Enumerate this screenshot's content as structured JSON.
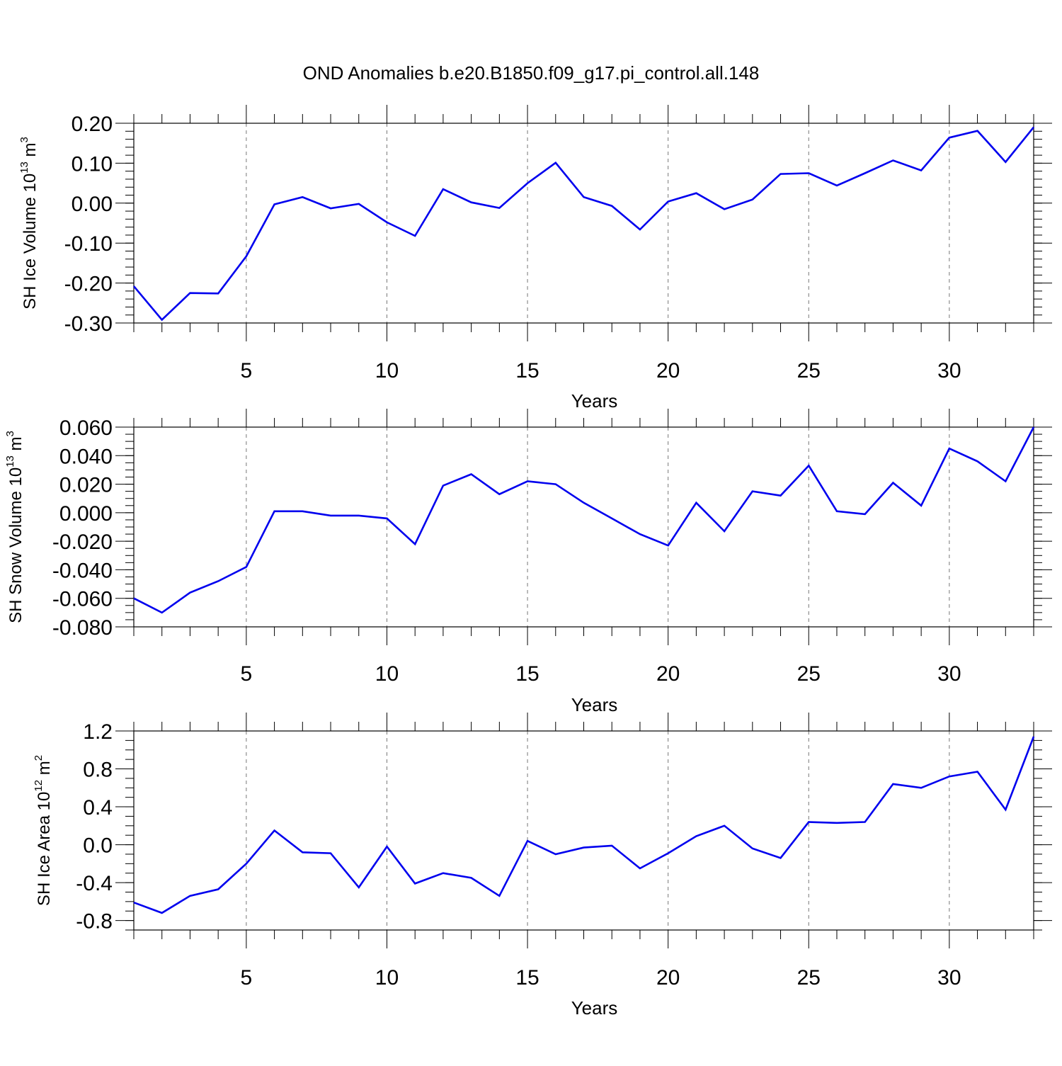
{
  "figure": {
    "title": "OND Anomalies b.e20.B1850.f09_g17.pi_control.all.148",
    "line_color": "#0000ee"
  },
  "chart_data": [
    {
      "type": "line",
      "ylabel_main": "SH Ice Volume 10",
      "ylabel_exp": "13",
      "ylabel_unit": " m",
      "ylabel_unit_exp": "3",
      "xlabel": "Years",
      "xlim": [
        1,
        33
      ],
      "ylim": [
        -0.3,
        0.2
      ],
      "xticks": [
        5,
        10,
        15,
        20,
        25,
        30
      ],
      "xtick_labels": [
        "5",
        "10",
        "15",
        "20",
        "25",
        "30"
      ],
      "yticks": [
        -0.3,
        -0.2,
        -0.1,
        0.0,
        0.1,
        0.2
      ],
      "ytick_labels": [
        "-0.30",
        "-0.20",
        "-0.10",
        "0.00",
        "0.10",
        "0.20"
      ],
      "ytick_minor_step": 0.02,
      "x": [
        1,
        2,
        3,
        4,
        5,
        6,
        7,
        8,
        9,
        10,
        11,
        12,
        13,
        14,
        15,
        16,
        17,
        18,
        19,
        20,
        21,
        22,
        23,
        24,
        25,
        26,
        27,
        28,
        29,
        30,
        31,
        32,
        33
      ],
      "values": [
        -0.208,
        -0.292,
        -0.225,
        -0.226,
        -0.133,
        -0.003,
        0.015,
        -0.013,
        -0.002,
        -0.048,
        -0.082,
        0.035,
        0.002,
        -0.012,
        0.05,
        0.101,
        0.015,
        -0.007,
        -0.066,
        0.004,
        0.025,
        -0.015,
        0.009,
        0.073,
        0.075,
        0.044,
        0.075,
        0.107,
        0.082,
        0.164,
        0.181,
        0.103,
        0.19
      ]
    },
    {
      "type": "line",
      "ylabel_main": "SH Snow Volume 10",
      "ylabel_exp": "13",
      "ylabel_unit": " m",
      "ylabel_unit_exp": "3",
      "xlabel": "Years",
      "xlim": [
        1,
        33
      ],
      "ylim": [
        -0.08,
        0.06
      ],
      "xticks": [
        5,
        10,
        15,
        20,
        25,
        30
      ],
      "xtick_labels": [
        "5",
        "10",
        "15",
        "20",
        "25",
        "30"
      ],
      "yticks": [
        -0.08,
        -0.06,
        -0.04,
        -0.02,
        0.0,
        0.02,
        0.04,
        0.06
      ],
      "ytick_labels": [
        "-0.080",
        "-0.060",
        "-0.040",
        "-0.020",
        "0.000",
        "0.020",
        "0.040",
        "0.060"
      ],
      "ytick_minor_step": 0.005,
      "x": [
        1,
        2,
        3,
        4,
        5,
        6,
        7,
        8,
        9,
        10,
        11,
        12,
        13,
        14,
        15,
        16,
        17,
        18,
        19,
        20,
        21,
        22,
        23,
        24,
        25,
        26,
        27,
        28,
        29,
        30,
        31,
        32,
        33
      ],
      "values": [
        -0.06,
        -0.07,
        -0.056,
        -0.048,
        -0.038,
        0.001,
        0.001,
        -0.002,
        -0.002,
        -0.004,
        -0.022,
        0.019,
        0.027,
        0.013,
        0.022,
        0.02,
        0.007,
        -0.004,
        -0.015,
        -0.023,
        0.007,
        -0.013,
        0.015,
        0.012,
        0.033,
        0.001,
        -0.001,
        0.021,
        0.005,
        0.045,
        0.036,
        0.022,
        0.06
      ]
    },
    {
      "type": "line",
      "ylabel_main": "SH Ice Area 10",
      "ylabel_exp": "12",
      "ylabel_unit": " m",
      "ylabel_unit_exp": "2",
      "xlabel": "Years",
      "xlim": [
        1,
        33
      ],
      "ylim": [
        -0.9,
        1.2
      ],
      "xticks": [
        5,
        10,
        15,
        20,
        25,
        30
      ],
      "xtick_labels": [
        "5",
        "10",
        "15",
        "20",
        "25",
        "30"
      ],
      "yticks": [
        -0.8,
        -0.4,
        0.0,
        0.4,
        0.8,
        1.2
      ],
      "ytick_labels": [
        "-0.8",
        "-0.4",
        "0.0",
        "0.4",
        "0.8",
        "1.2"
      ],
      "ytick_minor_step": 0.1,
      "x": [
        1,
        2,
        3,
        4,
        5,
        6,
        7,
        8,
        9,
        10,
        11,
        12,
        13,
        14,
        15,
        16,
        17,
        18,
        19,
        20,
        21,
        22,
        23,
        24,
        25,
        26,
        27,
        28,
        29,
        30,
        31,
        32,
        33
      ],
      "values": [
        -0.61,
        -0.72,
        -0.54,
        -0.47,
        -0.2,
        0.15,
        -0.08,
        -0.09,
        -0.45,
        -0.02,
        -0.41,
        -0.3,
        -0.35,
        -0.54,
        0.04,
        -0.1,
        -0.03,
        -0.01,
        -0.25,
        -0.09,
        0.09,
        0.2,
        -0.04,
        -0.14,
        0.24,
        0.23,
        0.24,
        0.64,
        0.6,
        0.72,
        0.77,
        0.37,
        1.14
      ]
    }
  ]
}
